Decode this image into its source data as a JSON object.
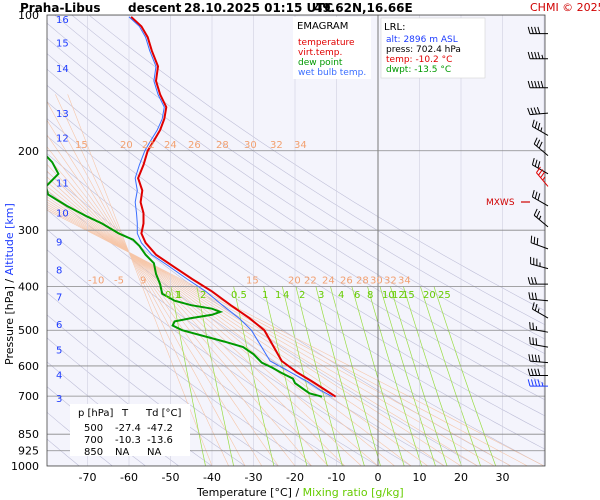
{
  "header": {
    "station": "Praha-Libus",
    "flight": "descent",
    "datetime": "28.10.2025 01:15 UTC",
    "coords": "49.62N,16.66E",
    "copyright": "CHMI © 2025"
  },
  "legend": {
    "title": "EMAGRAM",
    "items": [
      {
        "label": "temperature",
        "color": "#e00000"
      },
      {
        "label": "virt.temp.",
        "color": "#e00000"
      },
      {
        "label": "dew point",
        "color": "#009900"
      },
      {
        "label": "wet bulb temp.",
        "color": "#3a6eff"
      }
    ]
  },
  "lrl": {
    "title": "LRL:",
    "lines": [
      {
        "text": "alt: 2896 m ASL",
        "color": "#1e3cff"
      },
      {
        "text": "press: 702.4 hPa",
        "color": "#000000"
      },
      {
        "text": "temp: -10.2 °C",
        "color": "#e00000"
      },
      {
        "text": "dwpt: -13.5 °C",
        "color": "#009900"
      }
    ]
  },
  "mxws": "MXWS",
  "table": {
    "headers": [
      "p [hPa]",
      "T",
      "Td [°C]"
    ],
    "rows": [
      [
        "500",
        "-27.4",
        "-47.2"
      ],
      [
        "700",
        "-10.3",
        "-13.6"
      ],
      [
        "850",
        "NA",
        "NA"
      ]
    ]
  },
  "chart_data": {
    "type": "line",
    "xlabel": "Temperature [°C]",
    "xlabel_sep": "/",
    "xlabel2": "Mixing ratio [g/kg]",
    "ylabel": "Pressure [hPa]",
    "ylabel_sep": "/",
    "ylabel2": "Altitude [km]",
    "xlim": [
      -80,
      40
    ],
    "ylim_hpa": [
      1000,
      100
    ],
    "y_scale": "log",
    "x_ticks": [
      -70,
      -60,
      -50,
      -40,
      -30,
      -20,
      -10,
      0,
      10,
      20,
      30
    ],
    "p_ticks": [
      100,
      200,
      300,
      400,
      500,
      600,
      700,
      850,
      925,
      1000
    ],
    "km_ticks": [
      {
        "km": "3",
        "p": 706
      },
      {
        "km": "4",
        "p": 626
      },
      {
        "km": "5",
        "p": 551
      },
      {
        "km": "6",
        "p": 484
      },
      {
        "km": "7",
        "p": 421
      },
      {
        "km": "8",
        "p": 367
      },
      {
        "km": "9",
        "p": 318
      },
      {
        "km": "10",
        "p": 274
      },
      {
        "km": "11",
        "p": 235
      },
      {
        "km": "12",
        "p": 187
      },
      {
        "km": "13",
        "p": 165
      },
      {
        "km": "14",
        "p": 131
      },
      {
        "km": "15",
        "p": 115
      },
      {
        "km": "16",
        "p": 102
      }
    ],
    "series": [
      {
        "name": "temperature",
        "color": "#e00000",
        "points": [
          [
            -10.2,
            702
          ],
          [
            -12.5,
            680
          ],
          [
            -15.8,
            650
          ],
          [
            -19.5,
            620
          ],
          [
            -23.2,
            585
          ],
          [
            -27.4,
            500
          ],
          [
            -31.0,
            470
          ],
          [
            -35.5,
            440
          ],
          [
            -40.0,
            410
          ],
          [
            -44.8,
            385
          ],
          [
            -49.5,
            360
          ],
          [
            -53.5,
            340
          ],
          [
            -56.0,
            320
          ],
          [
            -57.0,
            305
          ],
          [
            -56.5,
            290
          ],
          [
            -56.5,
            275
          ],
          [
            -57.2,
            260
          ],
          [
            -56.8,
            245
          ],
          [
            -57.8,
            230
          ],
          [
            -56.5,
            215
          ],
          [
            -55.5,
            200
          ],
          [
            -54.0,
            190
          ],
          [
            -52.5,
            180
          ],
          [
            -51.5,
            170
          ],
          [
            -51.0,
            160
          ],
          [
            -52.5,
            150
          ],
          [
            -53.5,
            140
          ],
          [
            -53.0,
            130
          ],
          [
            -54.5,
            120
          ],
          [
            -55.5,
            112
          ],
          [
            -57.0,
            106
          ],
          [
            -59.5,
            101
          ]
        ]
      },
      {
        "name": "dew point",
        "color": "#009900",
        "points": [
          [
            -13.5,
            702
          ],
          [
            -16.5,
            690
          ],
          [
            -18.0,
            675
          ],
          [
            -20.0,
            655
          ],
          [
            -20.5,
            640
          ],
          [
            -23.5,
            620
          ],
          [
            -25.5,
            605
          ],
          [
            -28.0,
            590
          ],
          [
            -30.0,
            565
          ],
          [
            -32.5,
            545
          ],
          [
            -37.0,
            530
          ],
          [
            -47.2,
            500
          ],
          [
            -49.5,
            488
          ],
          [
            -49.0,
            478
          ],
          [
            -45.0,
            470
          ],
          [
            -40.0,
            462
          ],
          [
            -38.0,
            455
          ],
          [
            -40.0,
            448
          ],
          [
            -45.0,
            440
          ],
          [
            -49.0,
            430
          ],
          [
            -52.0,
            415
          ],
          [
            -52.5,
            395
          ],
          [
            -53.5,
            375
          ],
          [
            -54.0,
            355
          ],
          [
            -56.0,
            340
          ],
          [
            -57.5,
            325
          ],
          [
            -59.0,
            315
          ],
          [
            -62.5,
            305
          ],
          [
            -66.5,
            290
          ],
          [
            -70.0,
            280
          ],
          [
            -75.0,
            265
          ],
          [
            -79.5,
            250
          ],
          [
            -80.0,
            240
          ],
          [
            -77.0,
            225
          ],
          [
            -78.5,
            212
          ],
          [
            -80.0,
            205
          ]
        ]
      },
      {
        "name": "wet bulb temp.",
        "color": "#3a6eff",
        "points": [
          [
            -11.0,
            702
          ],
          [
            -13.8,
            680
          ],
          [
            -17.0,
            650
          ],
          [
            -21.0,
            620
          ],
          [
            -26.0,
            585
          ],
          [
            -30.5,
            500
          ],
          [
            -33.5,
            470
          ],
          [
            -37.5,
            440
          ],
          [
            -41.5,
            410
          ],
          [
            -46.0,
            385
          ],
          [
            -50.5,
            360
          ],
          [
            -54.5,
            340
          ],
          [
            -57.0,
            320
          ],
          [
            -58.0,
            305
          ],
          [
            -58.0,
            290
          ],
          [
            -58.2,
            275
          ],
          [
            -58.5,
            260
          ],
          [
            -58.0,
            245
          ],
          [
            -58.5,
            230
          ],
          [
            -57.5,
            215
          ],
          [
            -56.2,
            200
          ],
          [
            -54.8,
            190
          ],
          [
            -53.2,
            180
          ],
          [
            -52.0,
            170
          ],
          [
            -51.5,
            160
          ],
          [
            -53.0,
            150
          ],
          [
            -54.0,
            140
          ],
          [
            -53.5,
            130
          ],
          [
            -55.0,
            120
          ],
          [
            -56.0,
            112
          ],
          [
            -57.5,
            106
          ],
          [
            -60.0,
            101
          ]
        ]
      }
    ],
    "isotherms_labels": {
      "row200": {
        "p": 200,
        "values": [
          "15",
          "20",
          "22",
          "24",
          "26",
          "28",
          "30",
          "32",
          "34"
        ]
      },
      "row400": {
        "p": 400,
        "values": [
          "-10",
          "-5",
          "9",
          "15",
          "20",
          "22",
          "24",
          "26",
          "28",
          "30",
          "32",
          "34"
        ]
      }
    },
    "mixing_ratio_labels": [
      "0.1",
      "1",
      "2",
      "0.5",
      "1",
      "1",
      "4",
      "2",
      "3",
      "4",
      "6",
      "8",
      "10",
      "12",
      "15",
      "20",
      "25"
    ],
    "wind_barbs": [
      {
        "p": 110,
        "dir": 270,
        "spd": 40
      },
      {
        "p": 125,
        "dir": 270,
        "spd": 45
      },
      {
        "p": 145,
        "dir": 270,
        "spd": 50
      },
      {
        "p": 165,
        "dir": 265,
        "spd": 40
      },
      {
        "p": 185,
        "dir": 300,
        "spd": 35
      },
      {
        "p": 205,
        "dir": 310,
        "spd": 30
      },
      {
        "p": 225,
        "dir": 300,
        "spd": 30
      },
      {
        "p": 240,
        "dir": 320,
        "spd": 35
      },
      {
        "p": 265,
        "dir": 300,
        "spd": 30
      },
      {
        "p": 295,
        "dir": 310,
        "spd": 25
      },
      {
        "p": 330,
        "dir": 290,
        "spd": 30
      },
      {
        "p": 365,
        "dir": 285,
        "spd": 35
      },
      {
        "p": 395,
        "dir": 270,
        "spd": 30
      },
      {
        "p": 430,
        "dir": 275,
        "spd": 30
      },
      {
        "p": 470,
        "dir": 300,
        "spd": 25
      },
      {
        "p": 505,
        "dir": 280,
        "spd": 25
      },
      {
        "p": 545,
        "dir": 280,
        "spd": 30
      },
      {
        "p": 590,
        "dir": 275,
        "spd": 40
      },
      {
        "p": 630,
        "dir": 270,
        "spd": 40
      },
      {
        "p": 665,
        "dir": 270,
        "spd": 45
      }
    ]
  }
}
